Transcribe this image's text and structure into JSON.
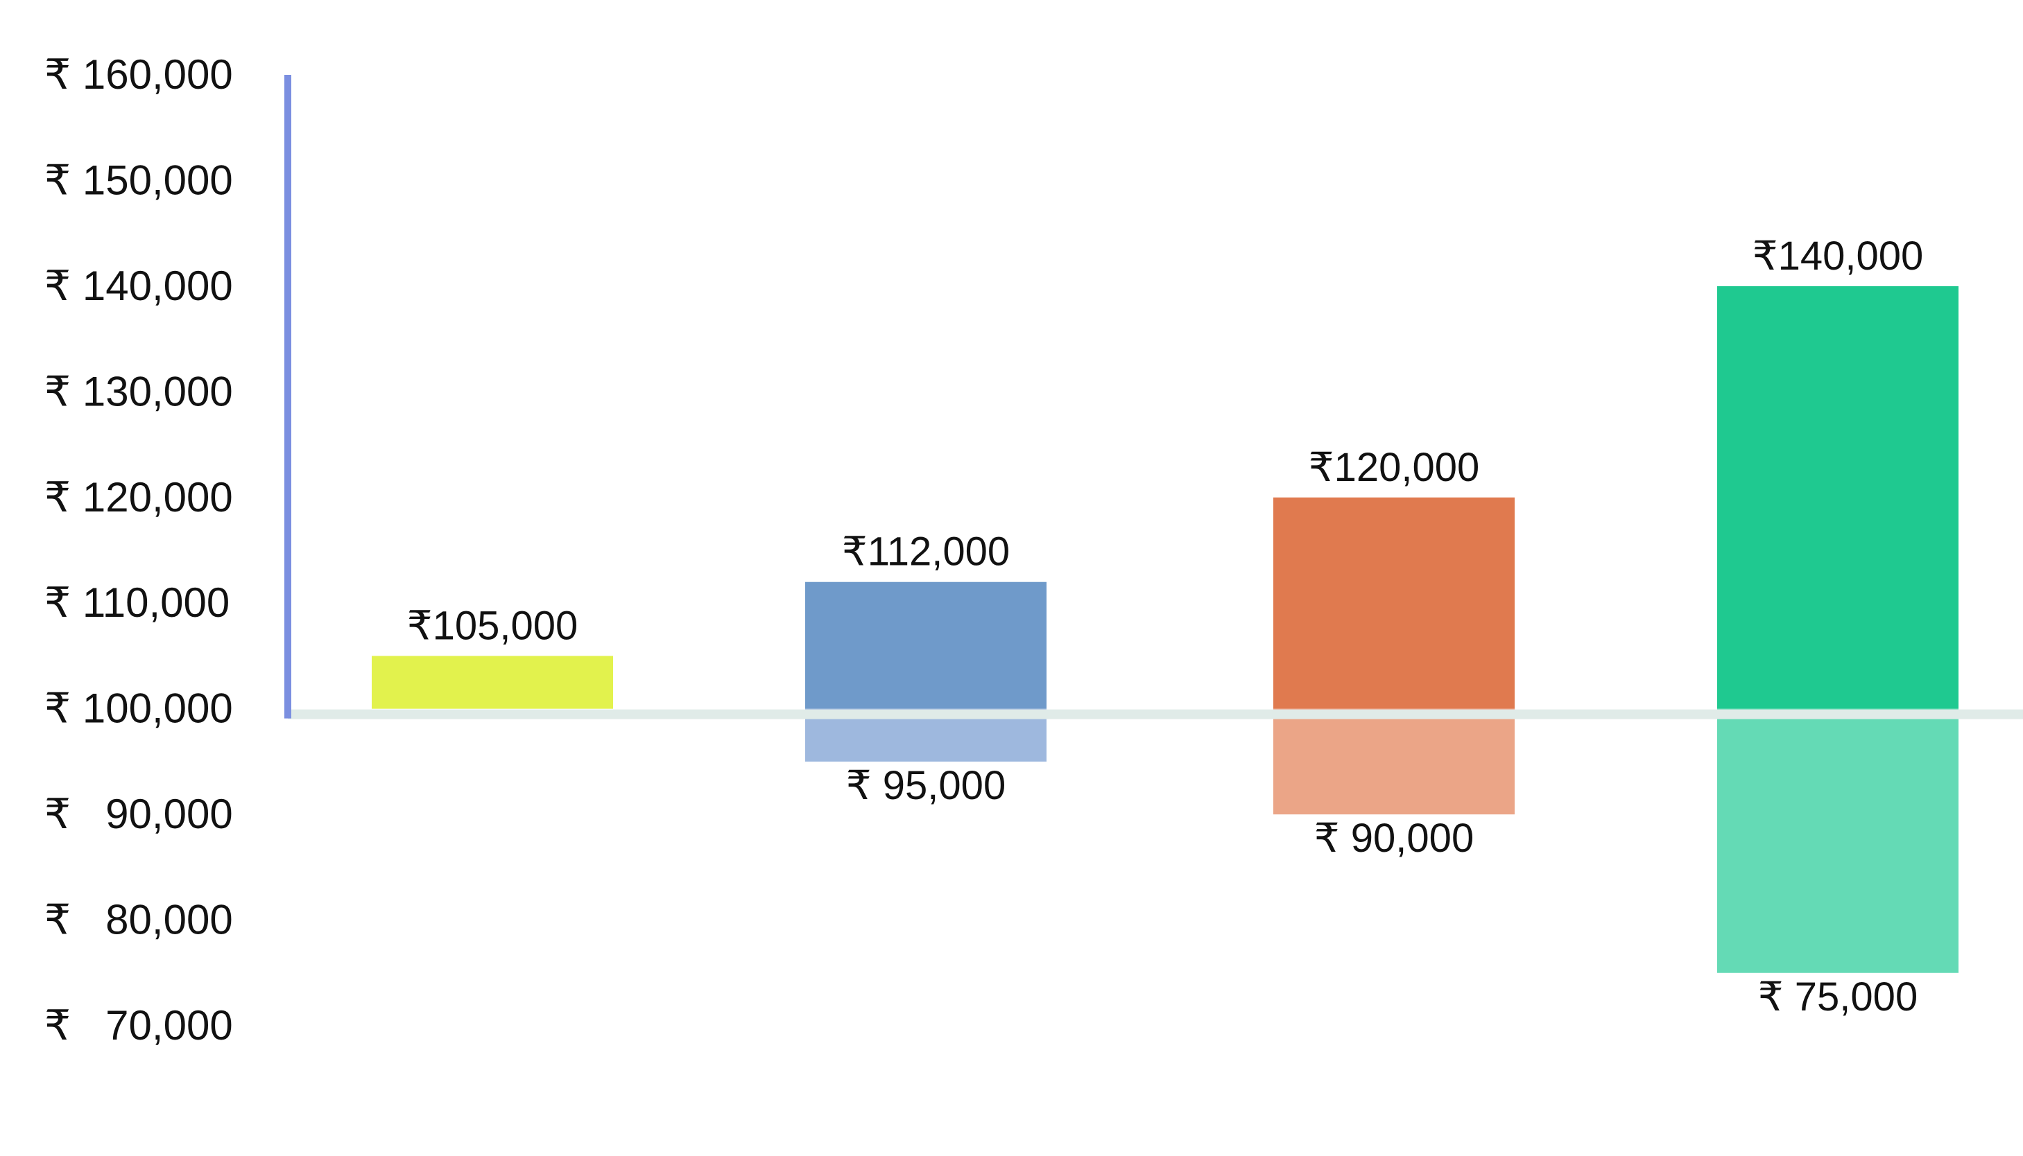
{
  "chart_data": {
    "type": "bar",
    "baseline": 100000,
    "ylim": [
      70000,
      160000
    ],
    "yticks": [
      160000,
      150000,
      140000,
      130000,
      120000,
      110000,
      100000,
      90000,
      80000,
      70000
    ],
    "ytick_labels": [
      "₹ 160,000",
      "₹ 150,000",
      "₹ 140,000",
      "₹ 130,000",
      "₹ 120,000",
      "₹ 110,000",
      "₹ 100,000",
      "₹   90,000",
      "₹   80,000",
      "₹   70,000"
    ],
    "bars": [
      {
        "high": 105000,
        "low": null,
        "high_label": "₹105,000",
        "low_label": "",
        "color": "#e2f24d",
        "low_color": ""
      },
      {
        "high": 112000,
        "low": 95000,
        "high_label": "₹112,000",
        "low_label": "₹ 95,000",
        "color": "#6f9aca",
        "low_color": "#9eb8de"
      },
      {
        "high": 120000,
        "low": 90000,
        "high_label": "₹120,000",
        "low_label": "₹ 90,000",
        "color": "#e07a4f",
        "low_color": "#eba587"
      },
      {
        "high": 140000,
        "low": 75000,
        "high_label": "₹140,000",
        "low_label": "₹ 75,000",
        "color": "#1fc990",
        "low_color": "#64dab5"
      }
    ],
    "axis_color": "#7b8fe0",
    "baseline_color": "#e0ebe8",
    "grid": false,
    "legend": "none",
    "title": "",
    "xlabel": "",
    "ylabel": ""
  }
}
